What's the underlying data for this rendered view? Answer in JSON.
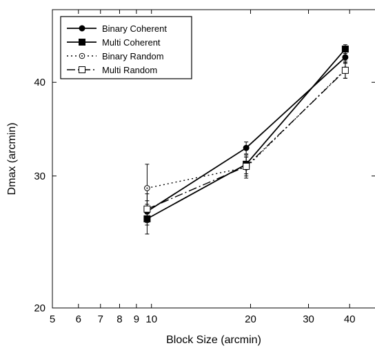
{
  "chart_data": {
    "type": "line",
    "xlabel": "Block Size (arcmin)",
    "ylabel": "Dmax (arcmin)",
    "x_scale": "log",
    "y_scale": "log",
    "xlim": [
      5,
      48
    ],
    "ylim": [
      20,
      50
    ],
    "x_ticks": [
      5,
      6,
      7,
      8,
      9,
      10,
      20,
      30,
      40
    ],
    "x_tick_labels": [
      "5",
      "6",
      "7",
      "8",
      "9",
      "10",
      "20",
      "30",
      "40"
    ],
    "y_ticks": [
      20,
      30,
      40
    ],
    "y_tick_labels": [
      "20",
      "30",
      "40"
    ],
    "grid": false,
    "legend_position": "top-left",
    "series": [
      {
        "name": "Binary Coherent",
        "line_style": "solid",
        "marker": "filled-circle",
        "x": [
          9.7,
          19.4,
          38.8
        ],
        "y": [
          26.9,
          32.7,
          43.2
        ],
        "err": [
          0.9,
          0.6,
          0.8
        ]
      },
      {
        "name": "Multi Coherent",
        "line_style": "solid",
        "marker": "filled-square",
        "x": [
          9.7,
          19.4,
          38.8
        ],
        "y": [
          26.3,
          31.1,
          44.3
        ],
        "err": [
          1.2,
          0.9,
          0.6
        ]
      },
      {
        "name": "Binary Random",
        "line_style": "dotted",
        "marker": "open-circle-dot",
        "x": [
          9.7,
          19.4,
          38.8
        ],
        "y": [
          28.9,
          30.8,
          41.6
        ],
        "err": [
          2.2,
          1.0,
          1.1
        ]
      },
      {
        "name": "Multi Random",
        "line_style": "dashdot",
        "marker": "open-square",
        "x": [
          9.7,
          19.4,
          38.8
        ],
        "y": [
          27.1,
          30.9,
          41.5
        ],
        "err": [
          1.3,
          0.9,
          1.0
        ]
      }
    ]
  }
}
